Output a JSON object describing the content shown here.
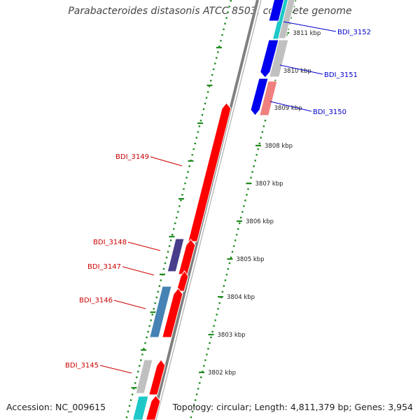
{
  "title": "Parabacteroides distasonis ATCC 8503, complete genome",
  "footer": {
    "accession": "Accession: NC_009615",
    "topology": "Topology: circular; Length: 4,811,379 bp; Genes: 3,954"
  },
  "colors": {
    "red": "#ff0000",
    "blue": "#0000ee",
    "cyan": "#1ec8c8",
    "silver": "#c0c0c0",
    "salmon": "#f08080",
    "navy_purple": "#483d8b",
    "steel_blue": "#4682b4",
    "backbone": "#808080",
    "ruler": "#228b22",
    "label_red": "#cc0000",
    "label_blue": "#0000cc"
  },
  "ruler_labels": [
    "3811 kbp",
    "3810 kbp",
    "3809 kbp",
    "3808 kbp",
    "3807 kbp",
    "3806 kbp",
    "3805 kbp",
    "3804 kbp",
    "3803 kbp",
    "3802 kbp"
  ],
  "gene_labels": [
    "BDI_3152",
    "BDI_3151",
    "BDI_3150",
    "BDI_3149",
    "BDI_3148",
    "BDI_3147",
    "BDI_3146",
    "BDI_3145"
  ]
}
